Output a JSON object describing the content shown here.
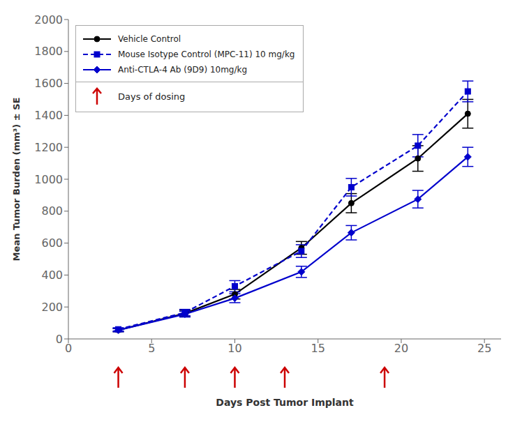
{
  "chart_data": {
    "type": "line",
    "xlabel": "Days Post Tumor Implant",
    "ylabel": "Mean Tumor Burden (mm³) ± SE",
    "x": [
      3,
      7,
      10,
      14,
      17,
      21,
      24
    ],
    "series": [
      {
        "name": "Vehicle Control",
        "color": "#000000",
        "marker": "circle",
        "line_style": "solid",
        "values": [
          55,
          160,
          280,
          570,
          850,
          1130,
          1410
        ],
        "errors": [
          10,
          20,
          30,
          40,
          60,
          80,
          90
        ]
      },
      {
        "name": "Mouse Isotype Control (MPC-11) 10 mg/kg",
        "color": "#0000cc",
        "marker": "square",
        "line_style": "dashed",
        "values": [
          60,
          165,
          330,
          550,
          950,
          1210,
          1550
        ],
        "errors": [
          10,
          20,
          35,
          40,
          55,
          70,
          65
        ]
      },
      {
        "name": "Anti-CTLA-4 Ab (9D9) 10mg/kg",
        "color": "#0000cc",
        "marker": "diamond",
        "line_style": "solid",
        "values": [
          55,
          155,
          255,
          420,
          665,
          875,
          1140
        ],
        "errors": [
          10,
          18,
          28,
          35,
          45,
          55,
          60
        ]
      }
    ],
    "dosing_days": [
      3,
      7,
      10,
      13,
      19
    ],
    "dosing_label": "Days of dosing",
    "dosing_color": "#cc0000",
    "xlim": [
      0,
      26
    ],
    "ylim": [
      0,
      2000
    ],
    "xticks": [
      0,
      5,
      10,
      15,
      20,
      25
    ],
    "yticks": [
      0,
      200,
      400,
      600,
      800,
      1000,
      1200,
      1400,
      1600,
      1800,
      2000
    ],
    "grid": false,
    "legend": "upper left"
  }
}
